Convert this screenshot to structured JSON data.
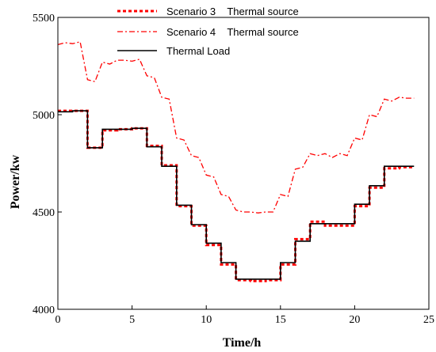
{
  "chart_data": {
    "type": "line",
    "xlabel": "Time/h",
    "ylabel": "Power/kw",
    "xlim": [
      0,
      25
    ],
    "ylim": [
      4000,
      5500
    ],
    "xticks": [
      0,
      5,
      10,
      15,
      20,
      25
    ],
    "yticks": [
      4000,
      4500,
      5000,
      5500
    ],
    "grid": false,
    "legend_position": "top-center",
    "series": [
      {
        "name": "Scenario 3    Thermal source",
        "style": "dotted",
        "color": "#ff0000",
        "x": [
          0,
          1,
          2,
          3,
          4,
          5,
          6,
          7,
          8,
          9,
          10,
          11,
          12,
          13,
          14,
          15,
          16,
          17,
          18,
          19,
          20,
          21,
          22,
          23,
          24
        ],
        "values": [
          5020,
          5020,
          4830,
          4920,
          4925,
          4930,
          4840,
          4740,
          4530,
          4430,
          4330,
          4230,
          4150,
          4145,
          4150,
          4230,
          4360,
          4450,
          4430,
          4430,
          4530,
          4625,
          4725,
          4730,
          4730
        ]
      },
      {
        "name": "Scenario 4    Thermal source",
        "style": "dashdot",
        "color": "#ff0000",
        "x": [
          0,
          0.5,
          1,
          1.5,
          2,
          2.5,
          3,
          3.5,
          4,
          4.5,
          5,
          5.5,
          6,
          6.5,
          7,
          7.5,
          8,
          8.5,
          9,
          9.5,
          10,
          10.5,
          11,
          11.5,
          12,
          12.5,
          13,
          13.5,
          14,
          14.5,
          15,
          15.5,
          16,
          16.5,
          17,
          17.5,
          18,
          18.5,
          19,
          19.5,
          20,
          20.5,
          21,
          21.5,
          22,
          22.5,
          23,
          23.5,
          24
        ],
        "values": [
          5360,
          5370,
          5365,
          5375,
          5180,
          5170,
          5270,
          5260,
          5280,
          5280,
          5275,
          5285,
          5200,
          5190,
          5090,
          5080,
          4880,
          4870,
          4790,
          4780,
          4690,
          4680,
          4590,
          4580,
          4510,
          4500,
          4500,
          4495,
          4500,
          4500,
          4590,
          4580,
          4720,
          4730,
          4800,
          4790,
          4800,
          4780,
          4800,
          4790,
          4880,
          4870,
          5000,
          4990,
          5080,
          5070,
          5090,
          5085,
          5085
        ]
      },
      {
        "name": "Thermal Load",
        "style": "solid",
        "color": "#000000",
        "x": [
          0,
          1,
          2,
          3,
          4,
          5,
          6,
          7,
          8,
          9,
          10,
          11,
          12,
          13,
          14,
          15,
          16,
          17,
          18,
          19,
          20,
          21,
          22,
          23,
          24
        ],
        "values": [
          5015,
          5020,
          4830,
          4925,
          4925,
          4930,
          4835,
          4735,
          4535,
          4435,
          4340,
          4240,
          4155,
          4155,
          4155,
          4240,
          4350,
          4440,
          4440,
          4440,
          4540,
          4635,
          4735,
          4735,
          4735
        ]
      }
    ]
  }
}
